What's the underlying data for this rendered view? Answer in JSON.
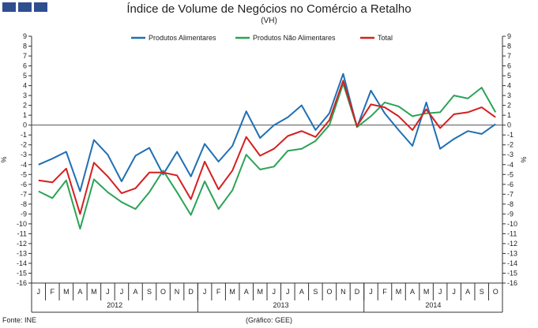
{
  "header": {
    "title": "Índice de Volume de Negócios no Comércio a Retalho",
    "subtitle": "(VH)"
  },
  "footer": {
    "source": "Fonte: INE",
    "credit": "(Gráfico: GEE)"
  },
  "chart_data": {
    "type": "line",
    "title": "Índice de Volume de Negócios no Comércio a Retalho",
    "subtitle": "(VH)",
    "ylabel": "%",
    "ylabel_right": "%",
    "ylim": [
      -16,
      9
    ],
    "yticks": [
      9,
      8,
      7,
      6,
      5,
      4,
      3,
      2,
      1,
      0,
      -1,
      -2,
      -3,
      -4,
      -5,
      -6,
      -7,
      -8,
      -9,
      -10,
      -11,
      -12,
      -13,
      -14,
      -15,
      -16
    ],
    "categories": [
      "J",
      "F",
      "M",
      "A",
      "M",
      "J",
      "J",
      "A",
      "S",
      "O",
      "N",
      "D",
      "J",
      "F",
      "M",
      "A",
      "M",
      "J",
      "J",
      "A",
      "S",
      "O",
      "N",
      "D",
      "J",
      "F",
      "M",
      "A",
      "M",
      "J",
      "J",
      "A",
      "S",
      "O"
    ],
    "year_groups": [
      {
        "label": "2012",
        "start": 0,
        "count": 12
      },
      {
        "label": "2013",
        "start": 12,
        "count": 12
      },
      {
        "label": "2014",
        "start": 24,
        "count": 10
      }
    ],
    "legend_position": "top",
    "grid": false,
    "series": [
      {
        "name": "Produtos Alimentares",
        "color": "#1f6fb4",
        "values": [
          -4.0,
          -3.4,
          -2.7,
          -6.7,
          -1.5,
          -3.0,
          -5.7,
          -3.1,
          -2.3,
          -5.0,
          -2.7,
          -5.2,
          -1.9,
          -3.7,
          -2.1,
          1.4,
          -1.3,
          0.0,
          0.8,
          2.0,
          -0.5,
          1.2,
          5.2,
          -0.2,
          3.5,
          1.2,
          -0.5,
          -2.1,
          2.3,
          -2.4,
          -1.4,
          -0.6,
          -0.9,
          0.1
        ]
      },
      {
        "name": "Produtos Não Alimentares",
        "color": "#2ca356",
        "values": [
          -6.7,
          -7.4,
          -5.6,
          -10.5,
          -5.5,
          -6.8,
          -7.8,
          -8.5,
          -6.8,
          -4.6,
          -6.8,
          -9.1,
          -5.7,
          -8.5,
          -6.6,
          -3.0,
          -4.5,
          -4.2,
          -2.6,
          -2.4,
          -1.6,
          0.0,
          4.2,
          -0.2,
          0.9,
          2.3,
          1.9,
          0.9,
          1.2,
          1.3,
          3.0,
          2.7,
          3.8,
          1.3
        ]
      },
      {
        "name": "Total",
        "color": "#d42020",
        "values": [
          -5.6,
          -5.8,
          -4.4,
          -9.0,
          -3.8,
          -5.2,
          -6.9,
          -6.4,
          -4.8,
          -4.8,
          -5.1,
          -7.5,
          -3.7,
          -6.5,
          -4.6,
          -1.2,
          -3.1,
          -2.4,
          -1.1,
          -0.6,
          -1.2,
          0.5,
          4.5,
          -0.1,
          2.1,
          1.8,
          0.9,
          -0.5,
          1.6,
          -0.3,
          1.1,
          1.3,
          1.8,
          0.8
        ]
      }
    ]
  }
}
